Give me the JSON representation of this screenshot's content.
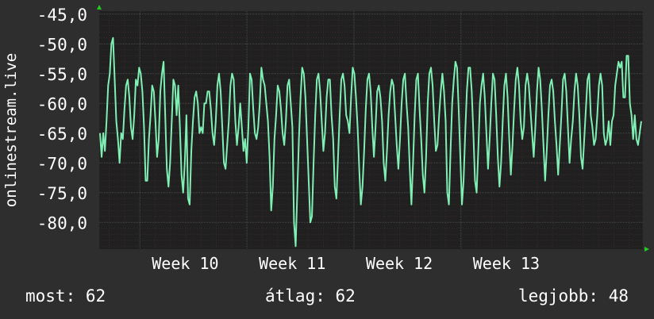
{
  "colors": {
    "background": "#2e2e2e",
    "plot_background": "#202020",
    "grid": "#4a4a4a",
    "grid_minor": "#3a2a2a",
    "series": "#7fefb4",
    "axis_arrow": "#22cc22",
    "text": "#ffffff"
  },
  "chart_data": {
    "type": "line",
    "ylabel": "onlinestream.live",
    "ylim": [
      -84.5,
      -44.5
    ],
    "yticks": [
      -45,
      -50,
      -55,
      -60,
      -65,
      -70,
      -75,
      -80
    ],
    "ytick_labels": [
      "-45,0",
      "-50,0",
      "-55,0",
      "-60,0",
      "-65,0",
      "-70,0",
      "-75,0",
      "-80,0"
    ],
    "xlim": [
      9.62,
      14.7
    ],
    "xticks": [
      10,
      11,
      12,
      13
    ],
    "xtick_labels": [
      "Week 10",
      "Week 11",
      "Week 12",
      "Week 13"
    ],
    "grid": true,
    "series": [
      {
        "values": [
          -65,
          -69,
          -65,
          -68,
          -63,
          -57,
          -55,
          -50,
          -49,
          -56,
          -63,
          -66,
          -70,
          -65,
          -66,
          -61,
          -57,
          -56,
          -59,
          -64,
          -66,
          -62,
          -56,
          -57,
          -54,
          -55,
          -58,
          -64,
          -73,
          -73,
          -66,
          -62,
          -57,
          -58,
          -63,
          -69,
          -66,
          -58,
          -55,
          -53,
          -62,
          -71,
          -74,
          -70,
          -63,
          -56,
          -57,
          -62,
          -57,
          -64,
          -72,
          -75,
          -70,
          -62,
          -76,
          -77,
          -68,
          -63,
          -59,
          -58,
          -60,
          -65,
          -64,
          -65,
          -60,
          -60,
          -58,
          -58,
          -61,
          -65,
          -67,
          -63,
          -57,
          -55,
          -58,
          -64,
          -70,
          -71,
          -67,
          -63,
          -57,
          -55,
          -56,
          -63,
          -67,
          -64,
          -60,
          -64,
          -68,
          -66,
          -70,
          -64,
          -55,
          -56,
          -61,
          -65,
          -66,
          -64,
          -60,
          -54,
          -56,
          -57,
          -60,
          -63,
          -69,
          -78,
          -74,
          -66,
          -62,
          -57,
          -58,
          -61,
          -65,
          -67,
          -63,
          -57,
          -56,
          -60,
          -64,
          -80,
          -84,
          -75,
          -66,
          -59,
          -54,
          -55,
          -59,
          -66,
          -73,
          -80,
          -79,
          -70,
          -62,
          -56,
          -55,
          -58,
          -63,
          -68,
          -65,
          -59,
          -56,
          -56,
          -62,
          -66,
          -74,
          -76,
          -69,
          -62,
          -56,
          -55,
          -57,
          -62,
          -63,
          -65,
          -59,
          -54,
          -55,
          -59,
          -64,
          -71,
          -77,
          -74,
          -68,
          -61,
          -56,
          -55,
          -58,
          -64,
          -69,
          -64,
          -58,
          -57,
          -59,
          -63,
          -70,
          -73,
          -68,
          -62,
          -58,
          -56,
          -57,
          -62,
          -67,
          -71,
          -66,
          -60,
          -56,
          -55,
          -60,
          -64,
          -71,
          -77,
          -70,
          -62,
          -56,
          -55,
          -61,
          -66,
          -72,
          -75,
          -69,
          -60,
          -55,
          -54,
          -57,
          -63,
          -68,
          -67,
          -62,
          -58,
          -55,
          -58,
          -63,
          -75,
          -77,
          -68,
          -60,
          -56,
          -53,
          -54,
          -61,
          -69,
          -77,
          -73,
          -65,
          -58,
          -54,
          -54,
          -58,
          -65,
          -73,
          -75,
          -68,
          -60,
          -57,
          -55,
          -59,
          -65,
          -71,
          -66,
          -60,
          -55,
          -56,
          -62,
          -69,
          -74,
          -70,
          -63,
          -57,
          -55,
          -59,
          -66,
          -72,
          -67,
          -61,
          -56,
          -54,
          -57,
          -63,
          -66,
          -64,
          -57,
          -55,
          -57,
          -61,
          -65,
          -69,
          -64,
          -58,
          -54,
          -56,
          -61,
          -67,
          -73,
          -68,
          -62,
          -57,
          -56,
          -58,
          -63,
          -67,
          -72,
          -67,
          -62,
          -56,
          -55,
          -58,
          -64,
          -70,
          -66,
          -63,
          -58,
          -55,
          -57,
          -62,
          -69,
          -71,
          -66,
          -61,
          -56,
          -55,
          -62,
          -64,
          -67,
          -66,
          -62,
          -57,
          -55,
          -57,
          -65,
          -67,
          -66,
          -63,
          -67,
          -63,
          -62,
          -57,
          -55,
          -53,
          -54,
          -53,
          -59,
          -59,
          -52,
          -52,
          -60,
          -62,
          -66,
          -62,
          -66,
          -67,
          -65,
          -63
        ]
      }
    ]
  },
  "stats": {
    "current": "most: 62",
    "average": "átlag: 62",
    "best": "legjobb: 48"
  }
}
